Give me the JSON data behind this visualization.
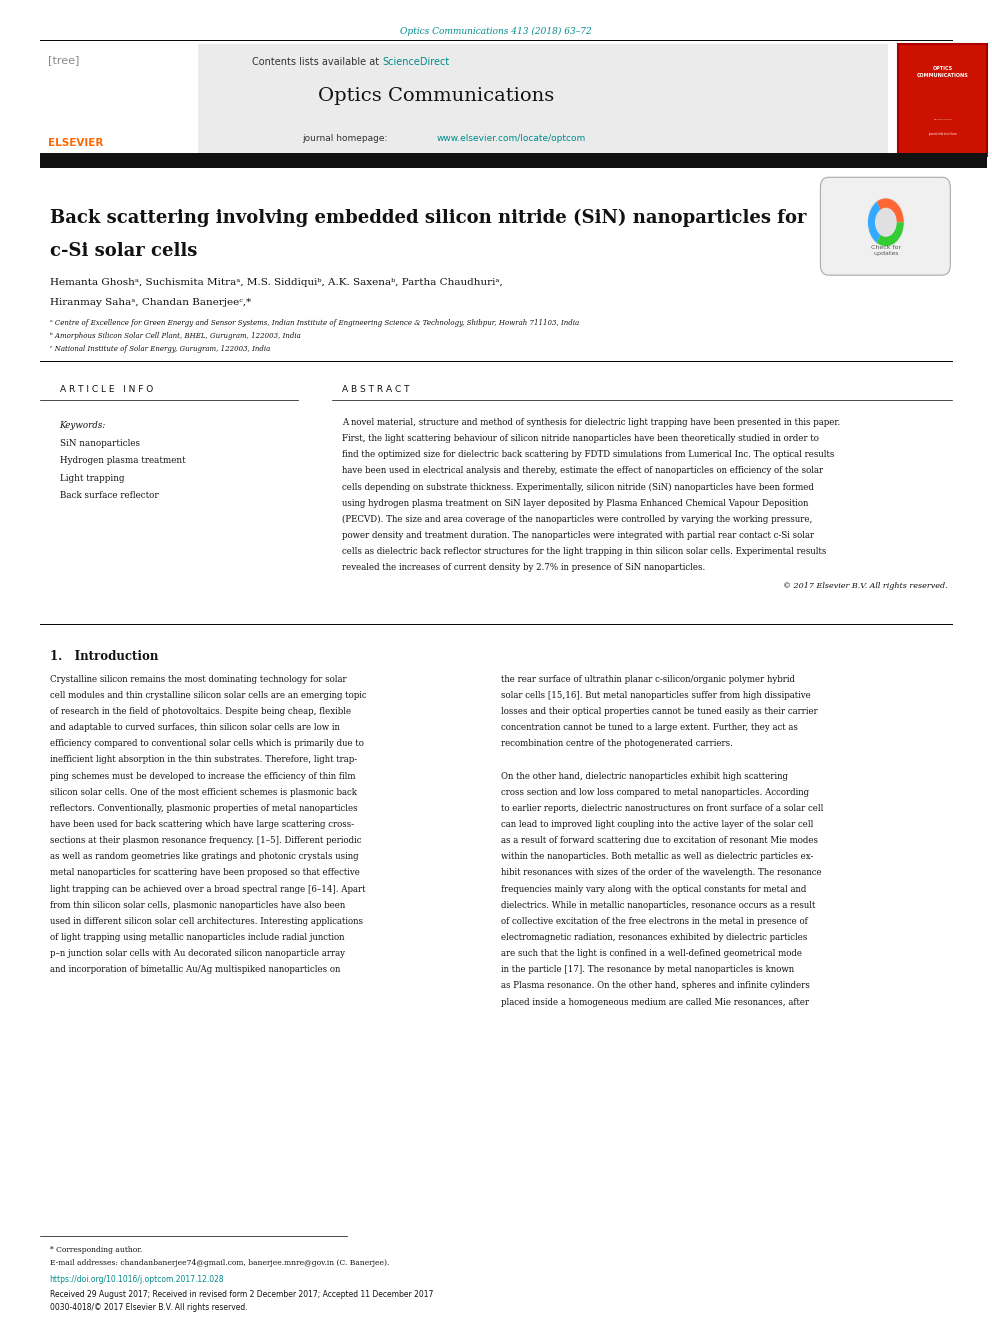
{
  "journal_ref": "Optics Communications 413 (2018) 63–72",
  "journal_name": "Optics Communications",
  "contents_text": "Contents lists available at ",
  "sciencedirect_text": "ScienceDirect",
  "journal_homepage": "journal homepage: ",
  "homepage_url": "www.elsevier.com/locate/optcom",
  "paper_title_line1": "Back scattering involving embedded silicon nitride (SiN) nanoparticles for",
  "paper_title_line2": "c-Si solar cells",
  "authors": "Hemanta Ghoshᵃ, Suchismita Mitraᵃ, M.S. Siddiquiᵇ, A.K. Saxenaᵇ, Partha Chaudhuriᵃ,",
  "authors2": "Hiranmay Sahaᵃ, Chandan Banerjeeᶜ,*",
  "affil1": "ᵃ Centre of Excellence for Green Energy and Sensor Systems, Indian Institute of Engineering Science & Technology, Shibpur, Howrah 711103, India",
  "affil2": "ᵇ Amorphous Silicon Solar Cell Plant, BHEL, Gurugram, 122003, India",
  "affil3": "ᶜ National Institute of Solar Energy, Gurugram, 122003, India",
  "article_info_header": "A R T I C L E   I N F O",
  "abstract_header": "A B S T R A C T",
  "keywords_label": "Keywords:",
  "keywords": [
    "SiN nanoparticles",
    "Hydrogen plasma treatment",
    "Light trapping",
    "Back surface reflector"
  ],
  "copyright": "© 2017 Elsevier B.V. All rights reserved.",
  "intro_header": "1.   Introduction",
  "footnote_corr": "* Corresponding author.",
  "footnote_email": "E-mail addresses: chandanbanerjee74@gmail.com, banerjee.mnre@gov.in (C. Banerjee).",
  "doi": "https://doi.org/10.1016/j.optcom.2017.12.028",
  "received": "Received 29 August 2017; Received in revised form 2 December 2017; Accepted 11 December 2017",
  "issn": "0030-4018/© 2017 Elsevier B.V. All rights reserved.",
  "bg_color": "#ffffff",
  "teal_color": "#008B8B",
  "orange_color": "#FF6600",
  "link_color": "#1a7a9a"
}
